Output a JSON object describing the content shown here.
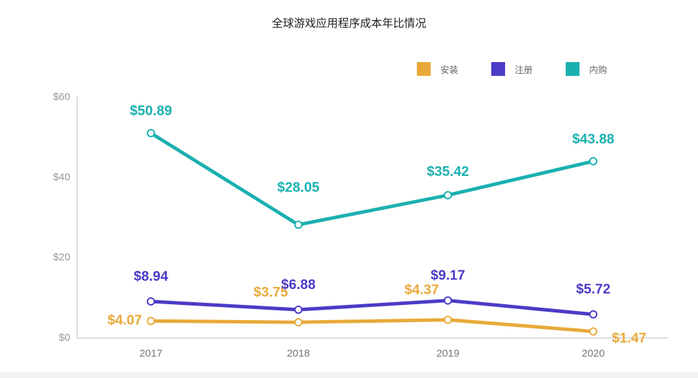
{
  "chart_data": {
    "type": "line",
    "title": "全球游戏应用程序成本年比情况",
    "categories": [
      "2017",
      "2018",
      "2019",
      "2020"
    ],
    "ylim": [
      0,
      60
    ],
    "yticks": [
      "$0",
      "$20",
      "$40",
      "$60"
    ],
    "yticks_values": [
      0,
      20,
      40,
      60
    ],
    "grid": false,
    "legend_position": "top-right",
    "series": [
      {
        "name": "安装",
        "color": "#e8a93a",
        "values": [
          4.07,
          3.75,
          4.37,
          1.47
        ],
        "labels": [
          "$4.07",
          "$3.75",
          "$4.37",
          "$1.47"
        ]
      },
      {
        "name": "注册",
        "color": "#4b3bc6",
        "values": [
          8.94,
          6.88,
          9.17,
          5.72
        ],
        "labels": [
          "$8.94",
          "$6.88",
          "$9.17",
          "$5.72"
        ]
      },
      {
        "name": "内购",
        "color": "#1bb0b0",
        "values": [
          50.89,
          28.05,
          35.42,
          43.88
        ],
        "labels": [
          "$50.89",
          "$28.05",
          "$35.42",
          "$43.88"
        ]
      }
    ]
  }
}
